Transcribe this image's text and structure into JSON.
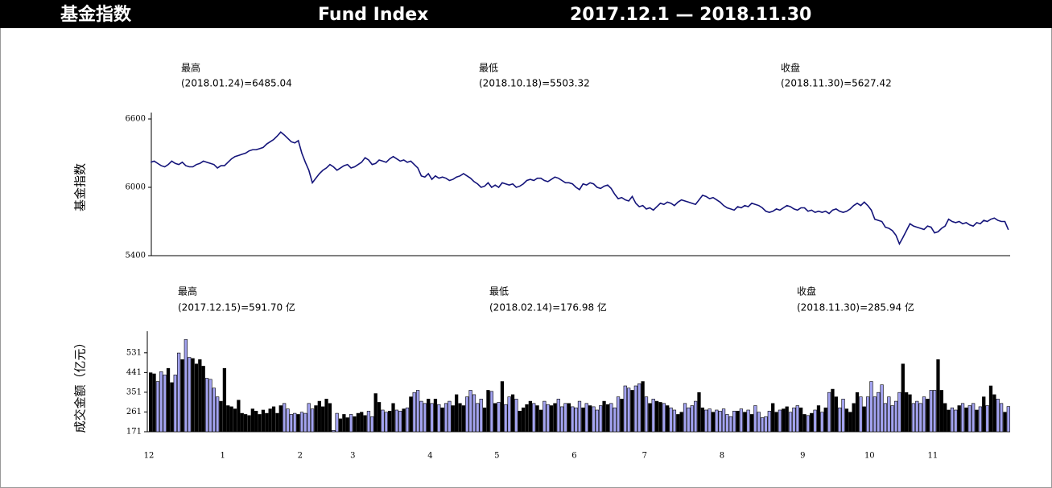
{
  "header": {
    "title_cn": "基金指数",
    "title_en": "Fund Index",
    "period": "2017.12.1 — 2018.11.30"
  },
  "chart_data": [
    {
      "type": "line",
      "ylabel": "基金指数",
      "ylim": [
        5400,
        6600
      ],
      "yticks": [
        5400,
        6000,
        6600
      ],
      "color": "#14147a",
      "annotations": [
        {
          "label": "最高",
          "text": "(2018.01.24)=6485.04"
        },
        {
          "label": "最低",
          "text": "(2018.10.18)=5503.32"
        },
        {
          "label": "收盘",
          "text": "(2018.11.30)=5627.42"
        }
      ],
      "values": [
        6220,
        6230,
        6210,
        6190,
        6180,
        6200,
        6230,
        6210,
        6200,
        6220,
        6190,
        6180,
        6180,
        6200,
        6210,
        6230,
        6220,
        6210,
        6200,
        6170,
        6190,
        6190,
        6220,
        6250,
        6270,
        6280,
        6290,
        6300,
        6320,
        6330,
        6330,
        6340,
        6350,
        6380,
        6400,
        6420,
        6450,
        6485.04,
        6460,
        6430,
        6400,
        6390,
        6410,
        6300,
        6220,
        6150,
        6040,
        6080,
        6120,
        6150,
        6170,
        6200,
        6180,
        6150,
        6170,
        6190,
        6200,
        6170,
        6180,
        6200,
        6220,
        6260,
        6240,
        6200,
        6210,
        6240,
        6230,
        6220,
        6250,
        6270,
        6250,
        6230,
        6240,
        6220,
        6230,
        6200,
        6170,
        6100,
        6090,
        6120,
        6070,
        6100,
        6080,
        6090,
        6080,
        6060,
        6070,
        6090,
        6100,
        6120,
        6100,
        6080,
        6050,
        6030,
        6000,
        6010,
        6040,
        6000,
        6020,
        6000,
        6040,
        6030,
        6020,
        6030,
        6000,
        6010,
        6030,
        6060,
        6070,
        6060,
        6080,
        6080,
        6060,
        6050,
        6070,
        6090,
        6080,
        6060,
        6040,
        6040,
        6030,
        6000,
        5980,
        6030,
        6020,
        6040,
        6030,
        6000,
        5990,
        6010,
        6020,
        5990,
        5940,
        5900,
        5910,
        5890,
        5880,
        5920,
        5860,
        5830,
        5840,
        5810,
        5820,
        5800,
        5830,
        5860,
        5850,
        5870,
        5860,
        5840,
        5870,
        5890,
        5880,
        5870,
        5860,
        5850,
        5890,
        5930,
        5920,
        5900,
        5910,
        5890,
        5870,
        5840,
        5820,
        5810,
        5800,
        5830,
        5820,
        5840,
        5830,
        5860,
        5850,
        5840,
        5820,
        5790,
        5780,
        5790,
        5810,
        5800,
        5820,
        5840,
        5830,
        5810,
        5800,
        5820,
        5820,
        5790,
        5800,
        5780,
        5790,
        5780,
        5790,
        5770,
        5800,
        5810,
        5790,
        5780,
        5790,
        5810,
        5840,
        5860,
        5840,
        5870,
        5840,
        5800,
        5720,
        5710,
        5700,
        5650,
        5640,
        5620,
        5580,
        5503.32,
        5560,
        5620,
        5680,
        5660,
        5650,
        5640,
        5630,
        5660,
        5650,
        5600,
        5610,
        5640,
        5660,
        5720,
        5700,
        5690,
        5700,
        5680,
        5690,
        5670,
        5660,
        5690,
        5680,
        5710,
        5700,
        5720,
        5730,
        5710,
        5700,
        5700,
        5627.42
      ]
    },
    {
      "type": "bar",
      "ylabel": "成交金额（亿元）",
      "ylim": [
        171,
        600
      ],
      "yticks": [
        171,
        261,
        351,
        441,
        531
      ],
      "up_color": "#000000",
      "down_color": "#a3a3f0",
      "annotations": [
        {
          "label": "最高",
          "text": "(2017.12.15)=591.70 亿"
        },
        {
          "label": "最低",
          "text": "(2018.02.14)=176.98 亿"
        },
        {
          "label": "收盘",
          "text": "(2018.11.30)=285.94 亿"
        }
      ],
      "categories": [
        "12",
        null,
        null,
        null,
        null,
        null,
        null,
        null,
        null,
        null,
        null,
        null,
        null,
        null,
        null,
        null,
        null,
        null,
        null,
        null,
        null,
        "1",
        null,
        null,
        null,
        null,
        null,
        null,
        null,
        null,
        null,
        null,
        null,
        null,
        null,
        null,
        null,
        null,
        null,
        null,
        null,
        null,
        null,
        "2",
        null,
        null,
        null,
        null,
        null,
        null,
        null,
        null,
        null,
        null,
        null,
        null,
        null,
        null,
        "3",
        null,
        null,
        null,
        null,
        null,
        null,
        null,
        null,
        null,
        null,
        null,
        null,
        null,
        null,
        null,
        null,
        null,
        null,
        null,
        null,
        null,
        "4",
        null,
        null,
        null,
        null,
        null,
        null,
        null,
        null,
        null,
        null,
        null,
        null,
        null,
        null,
        null,
        null,
        null,
        null,
        "5",
        null,
        null,
        null,
        null,
        null,
        null,
        null,
        null,
        null,
        null,
        null,
        null,
        null,
        null,
        null,
        null,
        null,
        null,
        null,
        null,
        null,
        "6",
        null,
        null,
        null,
        null,
        null,
        null,
        null,
        null,
        null,
        null,
        null,
        null,
        null,
        null,
        null,
        null,
        null,
        null,
        null,
        "7",
        null,
        null,
        null,
        null,
        null,
        null,
        null,
        null,
        null,
        null,
        null,
        null,
        null,
        null,
        null,
        null,
        null,
        null,
        null,
        null,
        null,
        "8",
        null,
        null,
        null,
        null,
        null,
        null,
        null,
        null,
        null,
        null,
        null,
        null,
        null,
        null,
        null,
        null,
        null,
        null,
        null,
        null,
        null,
        null,
        "9",
        null,
        null,
        null,
        null,
        null,
        null,
        null,
        null,
        null,
        null,
        null,
        null,
        null,
        null,
        null,
        null,
        null,
        null,
        "10",
        null,
        null,
        null,
        null,
        null,
        null,
        null,
        null,
        null,
        null,
        null,
        null,
        null,
        null,
        null,
        null,
        null,
        "11",
        null,
        null,
        null,
        null,
        null,
        null,
        null,
        null,
        null,
        null,
        null,
        null,
        null,
        null,
        null,
        null,
        null,
        null,
        null,
        null,
        null
      ],
      "values": [
        440,
        435,
        400,
        445,
        430,
        460,
        395,
        430,
        530,
        500,
        591.7,
        510,
        505,
        480,
        500,
        470,
        415,
        410,
        370,
        330,
        310,
        460,
        290,
        285,
        275,
        315,
        255,
        250,
        245,
        275,
        265,
        250,
        270,
        255,
        275,
        285,
        255,
        290,
        300,
        275,
        250,
        255,
        250,
        260,
        255,
        300,
        275,
        290,
        310,
        285,
        320,
        300,
        176.98,
        255,
        230,
        250,
        235,
        250,
        240,
        255,
        260,
        245,
        265,
        240,
        345,
        305,
        270,
        260,
        265,
        300,
        270,
        265,
        275,
        280,
        330,
        350,
        360,
        310,
        300,
        320,
        300,
        320,
        295,
        280,
        300,
        310,
        290,
        340,
        300,
        290,
        330,
        360,
        340,
        300,
        320,
        280,
        360,
        355,
        300,
        305,
        400,
        295,
        330,
        340,
        320,
        265,
        280,
        295,
        310,
        300,
        290,
        270,
        310,
        295,
        290,
        300,
        320,
        285,
        300,
        300,
        285,
        280,
        310,
        280,
        300,
        290,
        285,
        270,
        290,
        310,
        295,
        300,
        280,
        330,
        320,
        380,
        370,
        360,
        380,
        390,
        400,
        330,
        300,
        320,
        310,
        305,
        300,
        290,
        280,
        270,
        250,
        260,
        300,
        280,
        290,
        310,
        350,
        280,
        270,
        275,
        260,
        270,
        265,
        275,
        250,
        240,
        265,
        265,
        275,
        260,
        270,
        250,
        290,
        260,
        235,
        240,
        265,
        300,
        260,
        270,
        275,
        285,
        260,
        280,
        290,
        280,
        250,
        245,
        255,
        270,
        290,
        260,
        280,
        350,
        365,
        330,
        280,
        320,
        275,
        260,
        300,
        350,
        330,
        285,
        330,
        400,
        330,
        350,
        385,
        300,
        330,
        290,
        310,
        350,
        480,
        350,
        340,
        300,
        310,
        300,
        330,
        320,
        360,
        360,
        500,
        360,
        300,
        270,
        280,
        270,
        290,
        300,
        280,
        290,
        300,
        270,
        285,
        330,
        290,
        380,
        340,
        320,
        300,
        260,
        285.94
      ]
    }
  ]
}
